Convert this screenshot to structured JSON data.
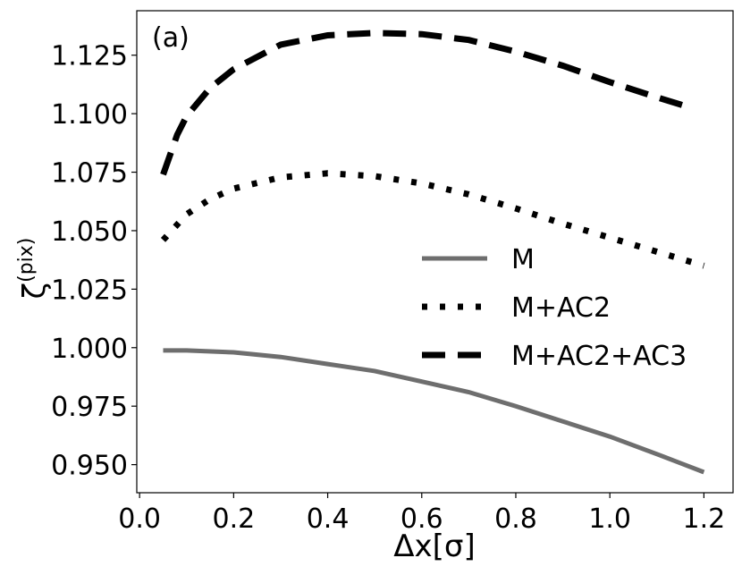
{
  "chart_data": {
    "type": "line",
    "panel_label": "(a)",
    "xlabel": "Δx[σ]",
    "ylabel": "ζ",
    "ylabel_superscript": "(pix)",
    "xlim": [
      -0.006,
      1.262
    ],
    "ylim": [
      0.938,
      1.144
    ],
    "xticks": [
      0.0,
      0.2,
      0.4,
      0.6,
      0.8,
      1.0,
      1.2
    ],
    "xtick_labels": [
      "0.0",
      "0.2",
      "0.4",
      "0.6",
      "0.8",
      "1.0",
      "1.2"
    ],
    "yticks": [
      0.95,
      0.975,
      1.0,
      1.025,
      1.05,
      1.075,
      1.1,
      1.125
    ],
    "ytick_labels": [
      "0.950",
      "0.975",
      "1.000",
      "1.025",
      "1.050",
      "1.075",
      "1.100",
      "1.125"
    ],
    "grid": false,
    "legend_placement": "center-right",
    "series": [
      {
        "name": "M",
        "style": "solid",
        "color": "#6e6e6e",
        "x": [
          0.05,
          0.1,
          0.2,
          0.3,
          0.4,
          0.5,
          0.6,
          0.7,
          0.8,
          0.9,
          1.0,
          1.1,
          1.2
        ],
        "y": [
          0.9988,
          0.9988,
          0.998,
          0.996,
          0.993,
          0.99,
          0.9855,
          0.981,
          0.975,
          0.9685,
          0.962,
          0.9545,
          0.9468
        ]
      },
      {
        "name": "M+AC2",
        "style": "dotted",
        "color": "#000000",
        "x": [
          0.05,
          0.1,
          0.15,
          0.2,
          0.3,
          0.4,
          0.5,
          0.6,
          0.7,
          0.8,
          0.9,
          1.0,
          1.1,
          1.2
        ],
        "y": [
          1.046,
          1.057,
          1.0635,
          1.068,
          1.0728,
          1.0745,
          1.0733,
          1.0702,
          1.0655,
          1.0595,
          1.053,
          1.047,
          1.041,
          1.035
        ]
      },
      {
        "name": "M+AC2+AC3",
        "style": "dashed",
        "color": "#000000",
        "x": [
          0.05,
          0.08,
          0.1,
          0.15,
          0.2,
          0.3,
          0.4,
          0.5,
          0.6,
          0.7,
          0.8,
          0.9,
          1.0,
          1.1,
          1.165
        ],
        "y": [
          1.074,
          1.091,
          1.099,
          1.111,
          1.119,
          1.1295,
          1.1335,
          1.1345,
          1.134,
          1.1315,
          1.1265,
          1.1205,
          1.1135,
          1.107,
          1.103
        ]
      }
    ]
  }
}
